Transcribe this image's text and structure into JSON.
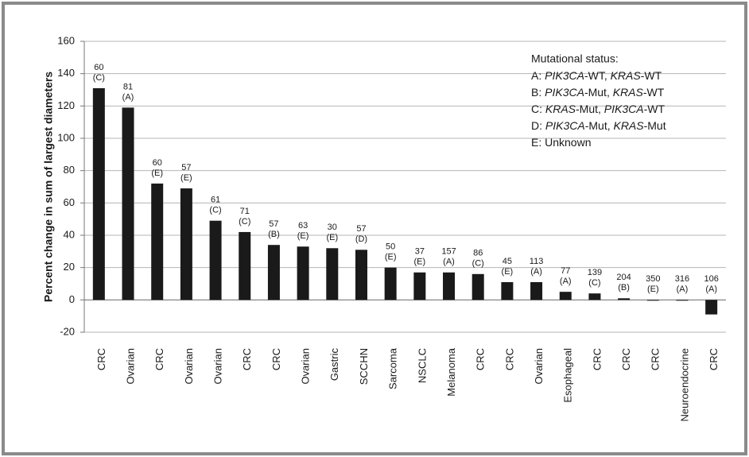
{
  "chart_data": {
    "type": "bar",
    "y_label": "Percent change in sum of largest diameters",
    "categories": [
      "CRC",
      "Ovarian",
      "CRC",
      "Ovarian",
      "Ovarian",
      "CRC",
      "CRC",
      "Ovarian",
      "Gastric",
      "SCCHN",
      "Sarcoma",
      "NSCLC",
      "Melanoma",
      "CRC",
      "CRC",
      "Ovarian",
      "Esophageal",
      "CRC",
      "CRC",
      "CRC",
      "Neuroendocrine",
      "CRC"
    ],
    "values": [
      131,
      119,
      72,
      69,
      49,
      42,
      34,
      33,
      32,
      31,
      20,
      17,
      17,
      16,
      11,
      11,
      5,
      4,
      1,
      -0.5,
      -0.5,
      -9
    ],
    "annotations": [
      [
        "60",
        "(C)"
      ],
      [
        "81",
        "(A)"
      ],
      [
        "60",
        "(E)"
      ],
      [
        "57",
        "(E)"
      ],
      [
        "61",
        "(C)"
      ],
      [
        "71",
        "(C)"
      ],
      [
        "57",
        "(B)"
      ],
      [
        "63",
        "(E)"
      ],
      [
        "30",
        "(E)"
      ],
      [
        "57",
        "(D)"
      ],
      [
        "50",
        "(E)"
      ],
      [
        "37",
        "(E)"
      ],
      [
        "157",
        "(A)"
      ],
      [
        "86",
        "(C)"
      ],
      [
        "45",
        "(E)"
      ],
      [
        "113",
        "(A)"
      ],
      [
        "77",
        "(A)"
      ],
      [
        "139",
        "(C)"
      ],
      [
        "204",
        "(B)"
      ],
      [
        "350",
        "(E)"
      ],
      [
        "316",
        "(A)"
      ],
      [
        "106",
        "(A)"
      ]
    ],
    "color": "#1a1a1a",
    "ylim": [
      -20,
      160
    ],
    "yticks": [
      -20,
      0,
      20,
      40,
      60,
      80,
      100,
      120,
      140,
      160
    ],
    "grid": true,
    "legend_title": "Mutational status:",
    "legend_lines": [
      [
        "A: ",
        "PIK3CA",
        "-WT, ",
        "KRAS",
        "-WT"
      ],
      [
        "B: ",
        "PIK3CA",
        "-Mut, ",
        "KRAS",
        "-WT"
      ],
      [
        "C: ",
        "KRAS",
        "-Mut, ",
        "PIK3CA",
        "-WT"
      ],
      [
        "D: ",
        "PIK3CA",
        "-Mut, ",
        "KRAS",
        "-Mut"
      ],
      [
        "E: Unknown"
      ]
    ]
  }
}
